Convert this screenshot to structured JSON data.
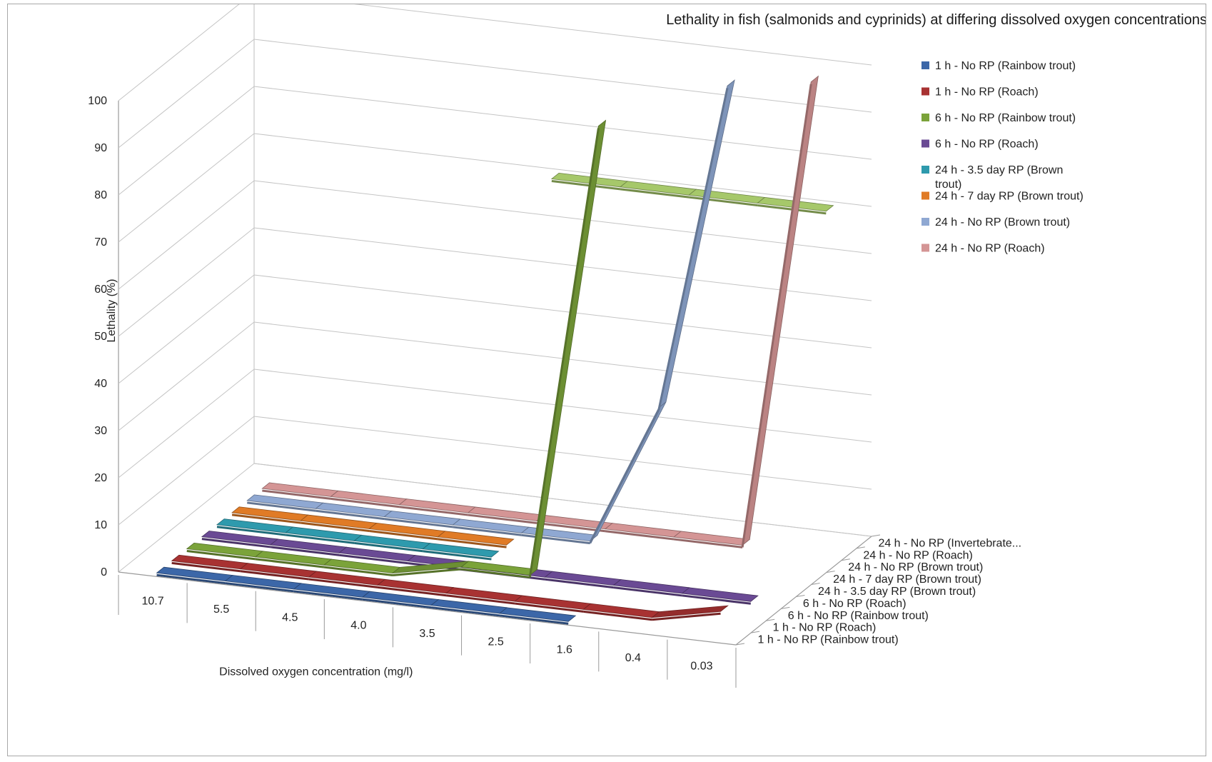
{
  "chart_data": {
    "type": "line",
    "variant": "3d-line",
    "title": "Lethality in fish (salmonids and cyprinids) at differing dissolved oxygen concentrations",
    "xlabel": "Dissolved oxygen concentration (mg/l)",
    "ylabel": "Lethality (%)",
    "ylim": [
      0,
      100
    ],
    "yticks": [
      "0",
      "10",
      "20",
      "30",
      "40",
      "50",
      "60",
      "70",
      "80",
      "90",
      "100"
    ],
    "categories": [
      "10.7",
      "5.5",
      "4.5",
      "4.0",
      "3.5",
      "2.5",
      "1.6",
      "0.4",
      "0.03"
    ],
    "depth_labels": [
      "1 h - No RP (Rainbow trout)",
      "1 h - No RP (Roach)",
      "6 h - No RP (Rainbow trout)",
      "6 h - No RP (Roach)",
      "24 h - 3.5 day RP (Brown trout)",
      "24 h - 7 day RP (Brown trout)",
      "24 h - No RP (Brown trout)",
      "24 h - No RP (Roach)",
      "24 h - No RP (Invertebrate..."
    ],
    "legend_position": "right",
    "grid": true,
    "series": [
      {
        "name": "1 h - No RP (Rainbow trout)",
        "color": "#3C67A8",
        "values": [
          0,
          0,
          0,
          0,
          0,
          0,
          0,
          null,
          null
        ]
      },
      {
        "name": "1 h - No RP (Roach)",
        "color": "#A83232",
        "values": [
          0,
          0,
          0,
          0,
          0,
          0,
          0,
          0,
          3
        ]
      },
      {
        "name": "6 h - No RP (Rainbow trout)",
        "color": "#7BA33A",
        "values": [
          0,
          0,
          0,
          0,
          3,
          3,
          100,
          null,
          null
        ]
      },
      {
        "name": "6 h - No RP (Roach)",
        "color": "#6A4A94",
        "values": [
          0,
          0,
          0,
          0,
          0,
          0,
          0,
          0,
          0
        ]
      },
      {
        "name": "24 h - 3.5 day RP (Brown trout)",
        "color": "#2E9AAD",
        "values": [
          0,
          0,
          0,
          0,
          0,
          null,
          null,
          null,
          null
        ]
      },
      {
        "name": "24 h - 7 day RP (Brown trout)",
        "color": "#E07B26",
        "values": [
          0,
          0,
          0,
          0,
          0,
          null,
          null,
          null,
          null
        ]
      },
      {
        "name": "24 h - No RP (Brown trout)",
        "color": "#8FA8D2",
        "values": [
          0,
          0,
          0,
          0,
          0,
          0,
          30,
          100,
          null
        ]
      },
      {
        "name": "24 h - No RP (Roach)",
        "color": "#D49595",
        "values": [
          0,
          0,
          0,
          0,
          0,
          0,
          0,
          0,
          100
        ]
      },
      {
        "name": "24 h - No RP (Invertebrate...",
        "color": "#A6C86A",
        "values": [
          null,
          null,
          null,
          null,
          70,
          70,
          70,
          70,
          70
        ]
      }
    ]
  }
}
